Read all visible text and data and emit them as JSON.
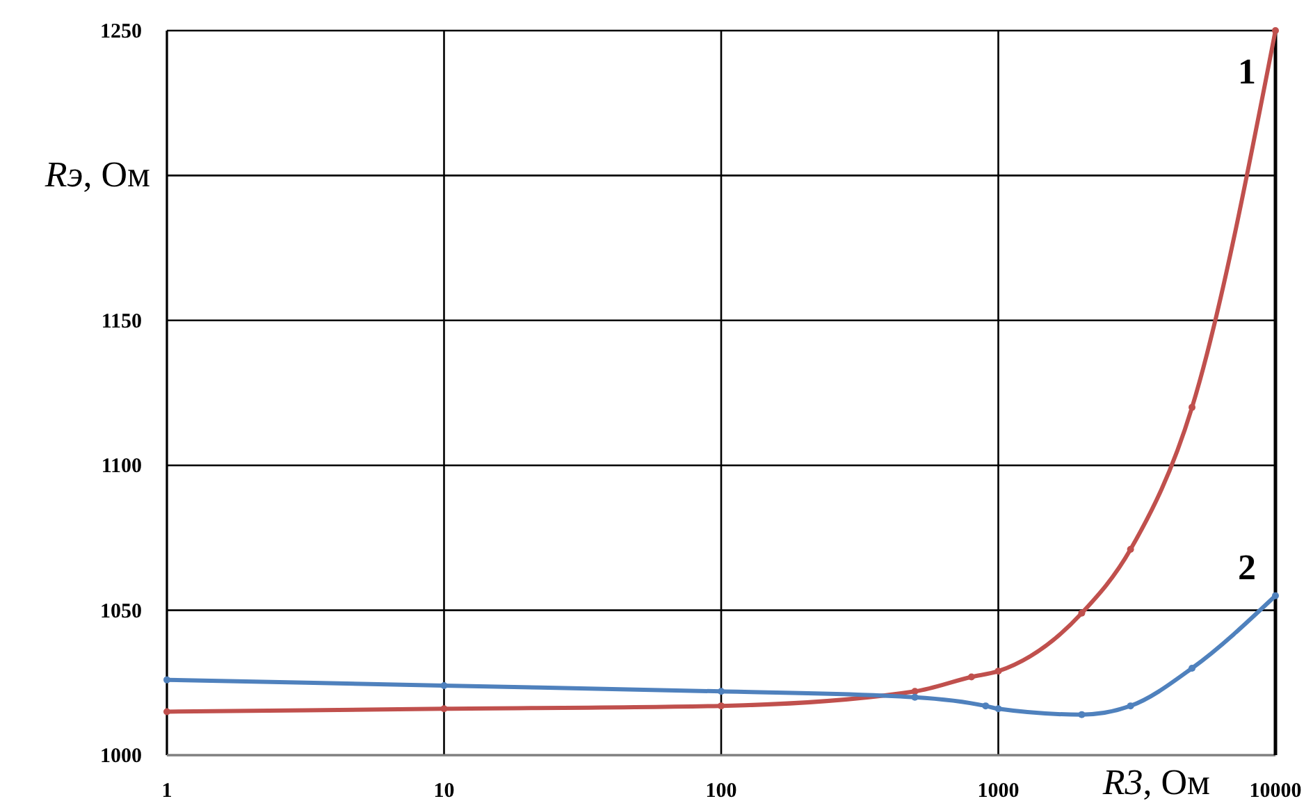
{
  "chart_data": {
    "type": "line",
    "xlabel": "R3, Ом",
    "ylabel": "Rэ, Ом",
    "log": "x",
    "xlim": [
      1,
      10000
    ],
    "xticks": [
      1,
      10,
      100,
      1000,
      10000
    ],
    "ylim": [
      1000,
      1250
    ],
    "yticks": [
      1000,
      1050,
      1100,
      1150,
      {
        "value": 1200,
        "label": null
      },
      1250
    ],
    "grid": true,
    "marker": "circle",
    "series": [
      {
        "name": "1",
        "color": "#c0504d",
        "x": [
          1,
          10,
          100,
          500,
          800,
          1000,
          2000,
          3000,
          5000,
          10000
        ],
        "values": [
          1015,
          1016,
          1017,
          1022,
          1027,
          1029,
          1049,
          1071,
          1120,
          1250
        ]
      },
      {
        "name": "2",
        "color": "#4f81bd",
        "x": [
          1,
          10,
          100,
          500,
          900,
          1000,
          2000,
          3000,
          5000,
          10000
        ],
        "values": [
          1026,
          1024,
          1022,
          1020,
          1017,
          1016,
          1014,
          1017,
          1030,
          1055
        ]
      }
    ]
  }
}
